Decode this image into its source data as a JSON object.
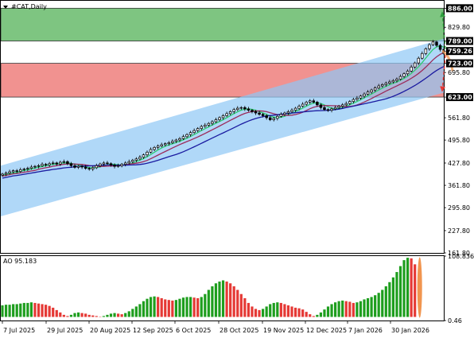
{
  "symbol_label": "#CAT,Daily",
  "chart_data": [
    {
      "type": "candlestick",
      "title": "#CAT,Daily",
      "ylim": [
        161.8,
        908
      ],
      "y_ticks": [
        {
          "v": 886.0,
          "label": "886.00",
          "hl": true
        },
        {
          "v": 829.8,
          "label": "829.80"
        },
        {
          "v": 789.0,
          "label": "789.00",
          "hl": true
        },
        {
          "v": 759.26,
          "label": "759.26",
          "hl": true
        },
        {
          "v": 723.0,
          "label": "723.00",
          "hl": true
        },
        {
          "v": 695.8,
          "label": "695.80"
        },
        {
          "v": 623.0,
          "label": "623.00",
          "hl": true
        },
        {
          "v": 561.8,
          "label": "561.80"
        },
        {
          "v": 495.8,
          "label": "495.80"
        },
        {
          "v": 427.8,
          "label": "427.80"
        },
        {
          "v": 361.8,
          "label": "361.80"
        },
        {
          "v": 295.8,
          "label": "295.80"
        },
        {
          "v": 227.8,
          "label": "227.80"
        },
        {
          "v": 161.8,
          "label": "161.80"
        }
      ],
      "x_ticks": [
        "7 Jul 2025",
        "29 Jul 2025",
        "20 Aug 2025",
        "12 Sep 2025",
        "6 Oct 2025",
        "28 Oct 2025",
        "19 Nov 2025",
        "12 Dec 2025",
        "7 Jan 2026",
        "30 Jan 2026"
      ],
      "zones": [
        {
          "name": "buy zone",
          "from": 789.0,
          "to": 886.0,
          "color": "#4caf50"
        },
        {
          "name": "sell zone",
          "from": 623.0,
          "to": 723.0,
          "color": "#e53935"
        }
      ],
      "channel": {
        "start": {
          "date": "7 Jul 2025",
          "upper": 420,
          "lower": 270
        },
        "end": {
          "date": "18 Feb 2026",
          "upper": 800,
          "lower": 640
        },
        "color": "#8fc8f5"
      },
      "closes": [
        395,
        398,
        402,
        405,
        403,
        408,
        410,
        412,
        416,
        418,
        420,
        424,
        422,
        426,
        428,
        425,
        430,
        432,
        426,
        420,
        415,
        418,
        416,
        412,
        410,
        414,
        420,
        425,
        428,
        426,
        422,
        418,
        420,
        424,
        428,
        432,
        436,
        440,
        445,
        452,
        460,
        468,
        474,
        478,
        482,
        485,
        488,
        492,
        496,
        500,
        506,
        512,
        518,
        524,
        530,
        536,
        540,
        545,
        550,
        556,
        562,
        568,
        574,
        580,
        586,
        590,
        592,
        588,
        584,
        580,
        576,
        572,
        568,
        562,
        556,
        560,
        566,
        572,
        576,
        580,
        584,
        590,
        596,
        602,
        608,
        612,
        608,
        600,
        592,
        586,
        584,
        588,
        592,
        596,
        600,
        604,
        610,
        616,
        620,
        626,
        632,
        638,
        644,
        650,
        656,
        660,
        664,
        668,
        672,
        676,
        684,
        692,
        700,
        712,
        724,
        738,
        752,
        766,
        778,
        786,
        776,
        764,
        752
      ],
      "moving_averages": [
        {
          "name": "fast",
          "color": "#2ecc71",
          "period": 5
        },
        {
          "name": "medium",
          "color": "#9c2a5a",
          "period": 10
        },
        {
          "name": "slow",
          "color": "#1a1aa0",
          "period": 20
        }
      ],
      "forecast": [
        {
          "direction": "up",
          "from": 765,
          "to": 875,
          "color": "#2e9e3e"
        },
        {
          "direction": "down",
          "from": 748,
          "to": 640,
          "color": "#e53935"
        }
      ]
    },
    {
      "type": "bar",
      "title": "AO 95.183",
      "ylim": [
        0.46,
        108.836
      ],
      "y_ticks": [
        {
          "v": 108.836,
          "label": "108.836"
        },
        {
          "v": 0.46,
          "label": "0.46"
        }
      ],
      "up_color": "#1e9e1e",
      "down_color": "#e53935",
      "values": [
        26,
        27,
        27,
        28,
        28,
        29,
        30,
        30,
        31,
        30,
        29,
        28,
        27,
        25,
        22,
        18,
        14,
        10,
        8,
        10,
        13,
        14,
        13,
        12,
        10,
        9,
        8,
        7,
        8,
        10,
        12,
        13,
        12,
        11,
        13,
        16,
        20,
        24,
        28,
        33,
        37,
        40,
        41,
        40,
        38,
        36,
        35,
        34,
        35,
        37,
        39,
        40,
        40,
        39,
        38,
        40,
        45,
        52,
        58,
        63,
        66,
        68,
        66,
        63,
        58,
        52,
        45,
        38,
        30,
        24,
        20,
        18,
        20,
        24,
        28,
        30,
        31,
        30,
        28,
        26,
        24,
        22,
        21,
        19,
        15,
        11,
        8,
        10,
        14,
        19,
        24,
        28,
        31,
        33,
        34,
        33,
        32,
        30,
        31,
        33,
        36,
        38,
        40,
        43,
        47,
        52,
        58,
        65,
        73,
        82,
        92,
        102,
        106,
        105,
        95
      ]
    }
  ]
}
